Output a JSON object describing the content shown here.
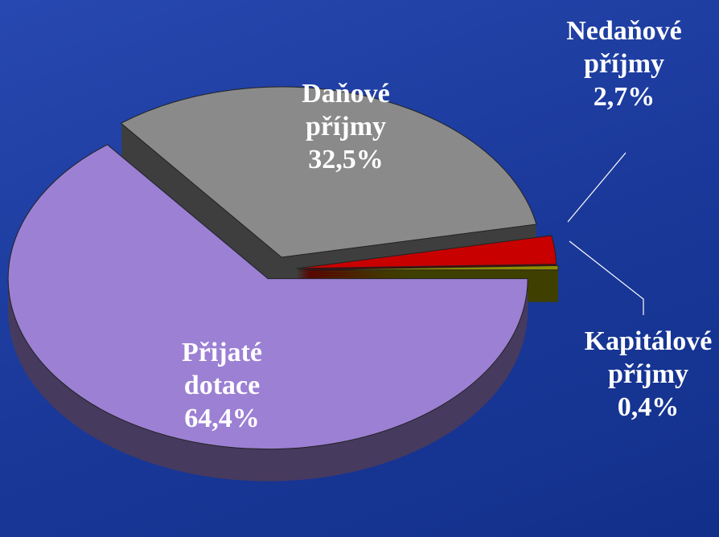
{
  "chart_data": {
    "type": "pie",
    "categories": [
      "Kapitálové příjmy",
      "Nedaňové příjmy",
      "Daňové příjmy",
      "Přijaté dotace"
    ],
    "values": [
      0.4,
      2.7,
      32.5,
      64.4
    ],
    "value_labels": [
      "0,4%",
      "2,7%",
      "32,5%",
      "64,4%"
    ],
    "colors": [
      "#8c8c00",
      "#c80000",
      "#8a8a8a",
      "#9c80d4"
    ]
  }
}
